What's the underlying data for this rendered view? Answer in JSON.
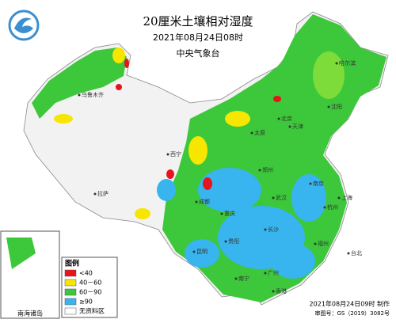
{
  "header": {
    "title": "20厘米土壤相对湿度",
    "subtitle": "2021年08月24日08时",
    "agency": "中央气象台"
  },
  "legend": {
    "title": "图例",
    "items": [
      {
        "label": "<40",
        "color": "#e8141c"
      },
      {
        "label": "40－60",
        "color": "#f6e600"
      },
      {
        "label": "60－90",
        "color": "#3cc83a"
      },
      {
        "label": "≥90",
        "color": "#38b4ee"
      },
      {
        "label": "无资料区",
        "color": "#ffffff"
      }
    ]
  },
  "inset": {
    "label": "南海诸岛"
  },
  "cities": [
    "北京",
    "天津",
    "太原",
    "郑州",
    "武汉",
    "长沙",
    "成都",
    "重庆",
    "贵阳",
    "昆明",
    "南宁",
    "广州",
    "福州",
    "杭州",
    "上海",
    "南京",
    "西宁",
    "拉萨",
    "乌鲁木齐",
    "哈尔滨",
    "沈阳",
    "香港",
    "台北"
  ],
  "footer": {
    "made": "2021年08月24日09时 制作",
    "approval": "审图号：GS（2019）3082号"
  }
}
